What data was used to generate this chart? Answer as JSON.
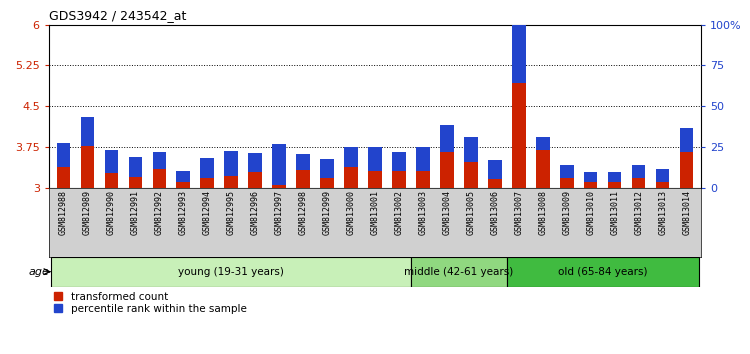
{
  "title": "GDS3942 / 243542_at",
  "samples": [
    "GSM812988",
    "GSM812989",
    "GSM812990",
    "GSM812991",
    "GSM812992",
    "GSM812993",
    "GSM812994",
    "GSM812995",
    "GSM812996",
    "GSM812997",
    "GSM812998",
    "GSM812999",
    "GSM813000",
    "GSM813001",
    "GSM813002",
    "GSM813003",
    "GSM813004",
    "GSM813005",
    "GSM813006",
    "GSM813007",
    "GSM813008",
    "GSM813009",
    "GSM813010",
    "GSM813011",
    "GSM813012",
    "GSM813013",
    "GSM813014"
  ],
  "red_values": [
    3.38,
    3.77,
    3.27,
    3.2,
    3.35,
    3.1,
    3.18,
    3.22,
    3.28,
    3.05,
    3.32,
    3.17,
    3.38,
    3.3,
    3.3,
    3.3,
    3.65,
    3.48,
    3.15,
    4.93,
    3.7,
    3.18,
    3.1,
    3.1,
    3.18,
    3.1,
    3.65
  ],
  "blue_values_pct": [
    15,
    18,
    14,
    12,
    10,
    7,
    12,
    15,
    12,
    25,
    10,
    12,
    12,
    15,
    12,
    15,
    17,
    15,
    12,
    45,
    8,
    8,
    6,
    6,
    8,
    8,
    15
  ],
  "groups": [
    {
      "label": "young (19-31 years)",
      "start": 0,
      "end": 15,
      "color": "#c8f0b8"
    },
    {
      "label": "middle (42-61 years)",
      "start": 15,
      "end": 19,
      "color": "#90d880"
    },
    {
      "label": "old (65-84 years)",
      "start": 19,
      "end": 27,
      "color": "#40bb40"
    }
  ],
  "ylim_left": [
    3.0,
    6.0
  ],
  "ylim_right": [
    0,
    100
  ],
  "yticks_left": [
    3.0,
    3.75,
    4.5,
    5.25,
    6.0
  ],
  "ytick_labels_left": [
    "3",
    "3.75",
    "4.5",
    "5.25",
    "6"
  ],
  "yticks_right_vals": [
    0,
    25,
    50,
    75,
    100
  ],
  "ytick_labels_right": [
    "0",
    "25",
    "50",
    "75",
    "100%"
  ],
  "hlines": [
    3.75,
    4.5,
    5.25
  ],
  "base": 3.0,
  "legend_red": "transformed count",
  "legend_blue": "percentile rank within the sample",
  "age_label": "age",
  "bar_color_red": "#cc2200",
  "bar_color_blue": "#2244cc",
  "tick_color_left": "#cc2200",
  "tick_color_right": "#2244cc",
  "xtick_bg_color": "#d0d0d0",
  "group_border_color": "#000000"
}
